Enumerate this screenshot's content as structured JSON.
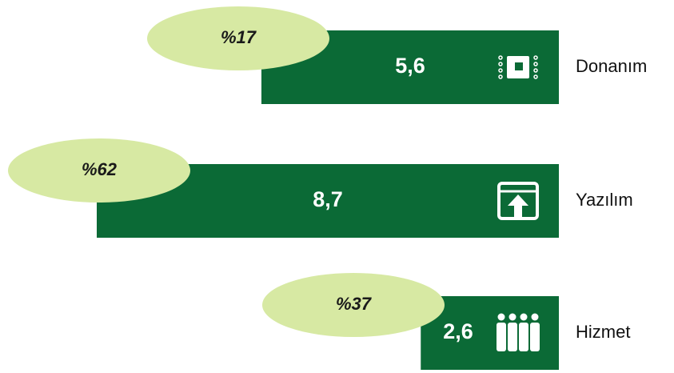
{
  "chart_data": {
    "type": "bar",
    "categories": [
      "Donanım",
      "Yazılım",
      "Hizmet"
    ],
    "values": [
      5.6,
      8.7,
      2.6
    ],
    "value_labels": [
      "5,6",
      "8,7",
      "2,6"
    ],
    "shares": [
      "%17",
      "%62",
      "%37"
    ],
    "color": "#0b6a36",
    "share_color": "#d7e9a3"
  }
}
